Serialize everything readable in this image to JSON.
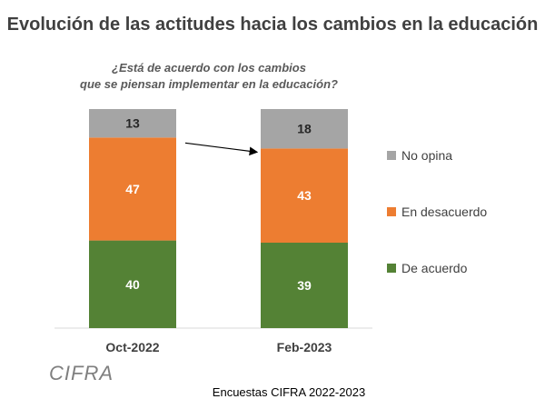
{
  "chart_data": {
    "type": "bar",
    "stacked": true,
    "title": "Evolución de las actitudes hacia los cambios en la educación",
    "subtitle": [
      "¿Está de acuerdo con los cambios",
      "que se piensan implementar en la educación?"
    ],
    "categories": [
      "Oct-2022",
      "Feb-2023"
    ],
    "series": [
      {
        "name": "De acuerdo",
        "values": [
          40,
          39
        ],
        "color": "#548235"
      },
      {
        "name": "En desacuerdo",
        "values": [
          47,
          43
        ],
        "color": "#ED7D31"
      },
      {
        "name": "No opina",
        "values": [
          13,
          18
        ],
        "color": "#A5A5A5"
      }
    ],
    "ylim": [
      0,
      100
    ],
    "grid": false,
    "legend_position": "right",
    "legend_order": [
      "No opina",
      "En desacuerdo",
      "De acuerdo"
    ],
    "annotation": "arrow from Oct-2022 to Feb-2023 between the No opina and En desacuerdo segments"
  },
  "logo_text": "CIFRA",
  "footer": "Encuestas CIFRA 2022-2023"
}
